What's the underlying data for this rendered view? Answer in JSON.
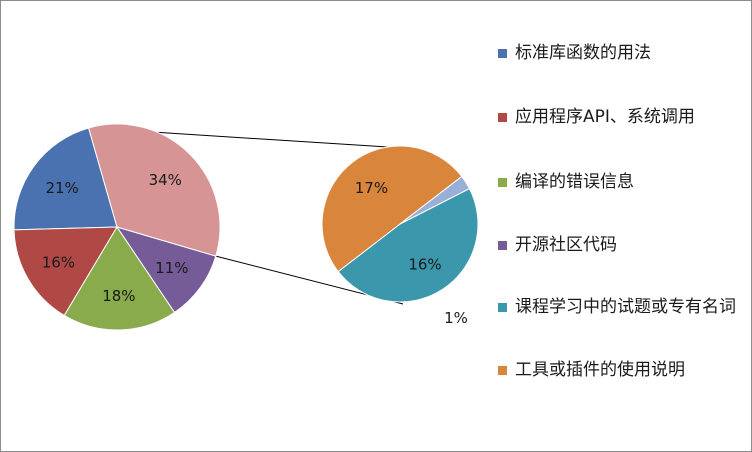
{
  "chart_data": {
    "type": "pie",
    "subtype": "pie-of-pie",
    "main_pie": [
      {
        "label": "标准库函数的用法",
        "value": 21,
        "text": "21%",
        "color": "#4a72b0"
      },
      {
        "label": "应用程序API、系统调用",
        "value": 16,
        "text": "16%",
        "color": "#b04846"
      },
      {
        "label": "编译的错误信息",
        "value": 18,
        "text": "18%",
        "color": "#8aab4c"
      },
      {
        "label": "开源社区代码",
        "value": 11,
        "text": "11%",
        "color": "#755c98"
      },
      {
        "label": "",
        "value": 34,
        "text": "34%",
        "color": "#d69594"
      }
    ],
    "secondary_pie": [
      {
        "label": "课程学习中的试题或专有名词",
        "value": 16,
        "text": "16%",
        "color": "#3b97ac"
      },
      {
        "label": "工具或插件的使用说明",
        "value": 17,
        "text": "17%",
        "color": "#d9853b"
      },
      {
        "label": "",
        "value": 1,
        "text": "1%",
        "color": "#9aafd8"
      }
    ],
    "legend": [
      {
        "label": "标准库函数的用法",
        "color": "#4a72b0"
      },
      {
        "label": "应用程序API、系统调用",
        "color": "#b04846"
      },
      {
        "label": "编译的错误信息",
        "color": "#8aab4c"
      },
      {
        "label": "开源社区代码",
        "color": "#755c98"
      },
      {
        "label": "课程学习中的试题或专有名词",
        "color": "#3b97ac"
      },
      {
        "label": "工具或插件的使用说明",
        "color": "#d9853b"
      }
    ],
    "legend_position": "right"
  }
}
